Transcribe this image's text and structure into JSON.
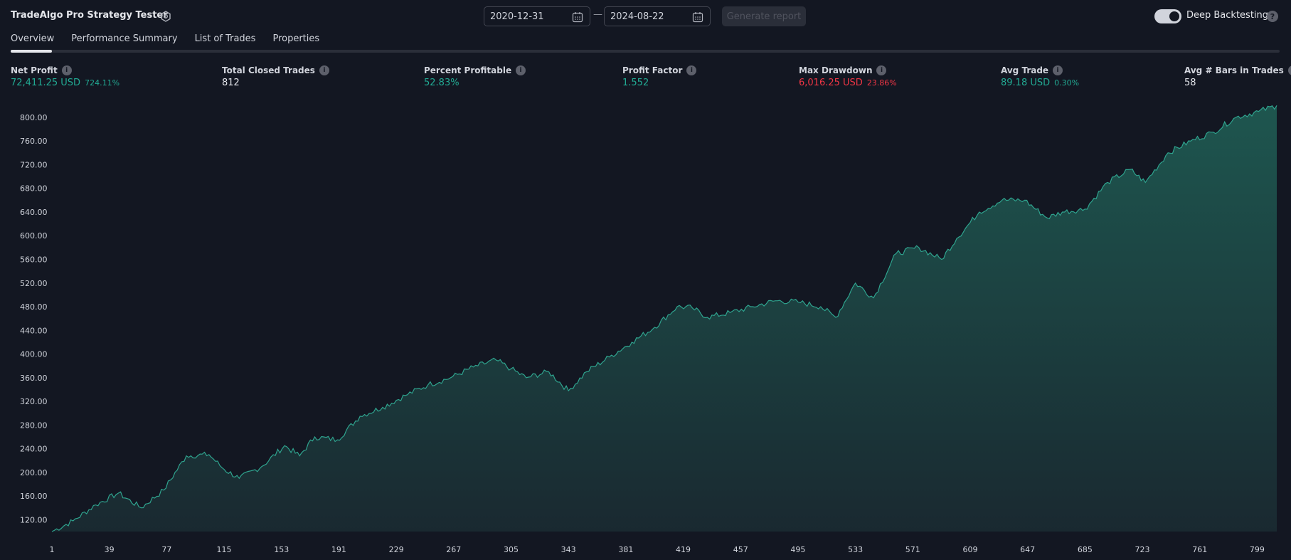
{
  "app": {
    "title": "TradeAlgo Pro Strategy Tester",
    "icon": "gear-icon"
  },
  "dates": {
    "start": "2020-12-31",
    "end": "2024-08-22",
    "separator": "—"
  },
  "generate_button": "Generate report",
  "deep_backtesting": {
    "label": "Deep Backtesting",
    "enabled": true,
    "help": "?"
  },
  "tabs": [
    {
      "label": "Overview",
      "active": true
    },
    {
      "label": "Performance Summary",
      "active": false
    },
    {
      "label": "List of Trades",
      "active": false
    },
    {
      "label": "Properties",
      "active": false
    }
  ],
  "metrics": [
    {
      "label": "Net Profit",
      "value": "72,411.25 USD",
      "sub": "724.11%",
      "color": "green"
    },
    {
      "label": "Total Closed Trades",
      "value": "812",
      "sub": "",
      "color": "white"
    },
    {
      "label": "Percent Profitable",
      "value": "52.83%",
      "sub": "",
      "color": "green"
    },
    {
      "label": "Profit Factor",
      "value": "1.552",
      "sub": "",
      "color": "green"
    },
    {
      "label": "Max Drawdown",
      "value": "6,016.25 USD",
      "sub": "23.86%",
      "color": "red"
    },
    {
      "label": "Avg Trade",
      "value": "89.18 USD",
      "sub": "0.30%",
      "color": "green"
    },
    {
      "label": "Avg # Bars in Trades",
      "value": "58",
      "sub": "",
      "color": "white"
    }
  ],
  "info_glyph": "i",
  "colors": {
    "bg": "#131722",
    "accent": "#22ab94",
    "negative": "#f23645",
    "line": "#2fa38e"
  },
  "chart_data": {
    "type": "area",
    "y_ticks": [
      "120.00",
      "160.00",
      "200.00",
      "240.00",
      "280.00",
      "320.00",
      "360.00",
      "400.00",
      "440.00",
      "480.00",
      "520.00",
      "560.00",
      "600.00",
      "640.00",
      "680.00",
      "720.00",
      "760.00",
      "800.00"
    ],
    "x_ticks": [
      "1",
      "39",
      "77",
      "115",
      "153",
      "191",
      "229",
      "267",
      "305",
      "343",
      "381",
      "419",
      "457",
      "495",
      "533",
      "571",
      "609",
      "647",
      "685",
      "723",
      "761",
      "799"
    ],
    "ylim": [
      100,
      830
    ],
    "xlim": [
      1,
      812
    ],
    "x": [
      1,
      15,
      30,
      45,
      60,
      75,
      90,
      105,
      115,
      125,
      140,
      155,
      165,
      175,
      190,
      205,
      220,
      235,
      250,
      265,
      280,
      295,
      305,
      315,
      330,
      343,
      355,
      370,
      385,
      400,
      415,
      425,
      435,
      450,
      465,
      480,
      495,
      510,
      520,
      533,
      545,
      560,
      575,
      590,
      600,
      615,
      630,
      645,
      660,
      670,
      685,
      700,
      715,
      725,
      740,
      755,
      770,
      785,
      800,
      812
    ],
    "values": [
      100,
      118,
      145,
      165,
      140,
      170,
      228,
      230,
      205,
      190,
      210,
      245,
      228,
      260,
      255,
      295,
      310,
      330,
      348,
      360,
      378,
      390,
      375,
      360,
      370,
      338,
      370,
      395,
      420,
      445,
      480,
      478,
      462,
      470,
      480,
      490,
      488,
      480,
      462,
      520,
      495,
      570,
      580,
      560,
      595,
      640,
      660,
      660,
      630,
      640,
      645,
      690,
      712,
      690,
      740,
      760,
      775,
      800,
      810,
      820
    ]
  }
}
